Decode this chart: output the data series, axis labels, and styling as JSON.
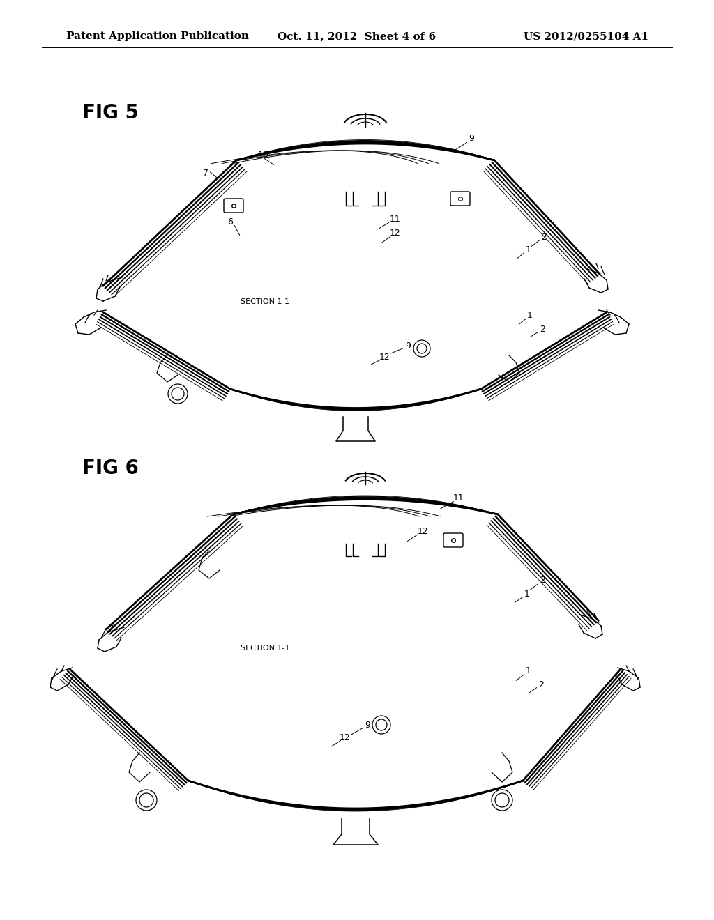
{
  "background_color": "#ffffff",
  "header_left": "Patent Application Publication",
  "header_center": "Oct. 11, 2012  Sheet 4 of 6",
  "header_right": "US 2012/0255104 A1",
  "header_fontsize": 11,
  "fig5_label": "FIG 5",
  "fig5_label_fontsize": 20,
  "fig6_label": "FIG 6",
  "fig6_label_fontsize": 20,
  "section11_text": "SECTION 1 1",
  "section11b_text": "SECTION 1-1",
  "label_fontsize": 9
}
